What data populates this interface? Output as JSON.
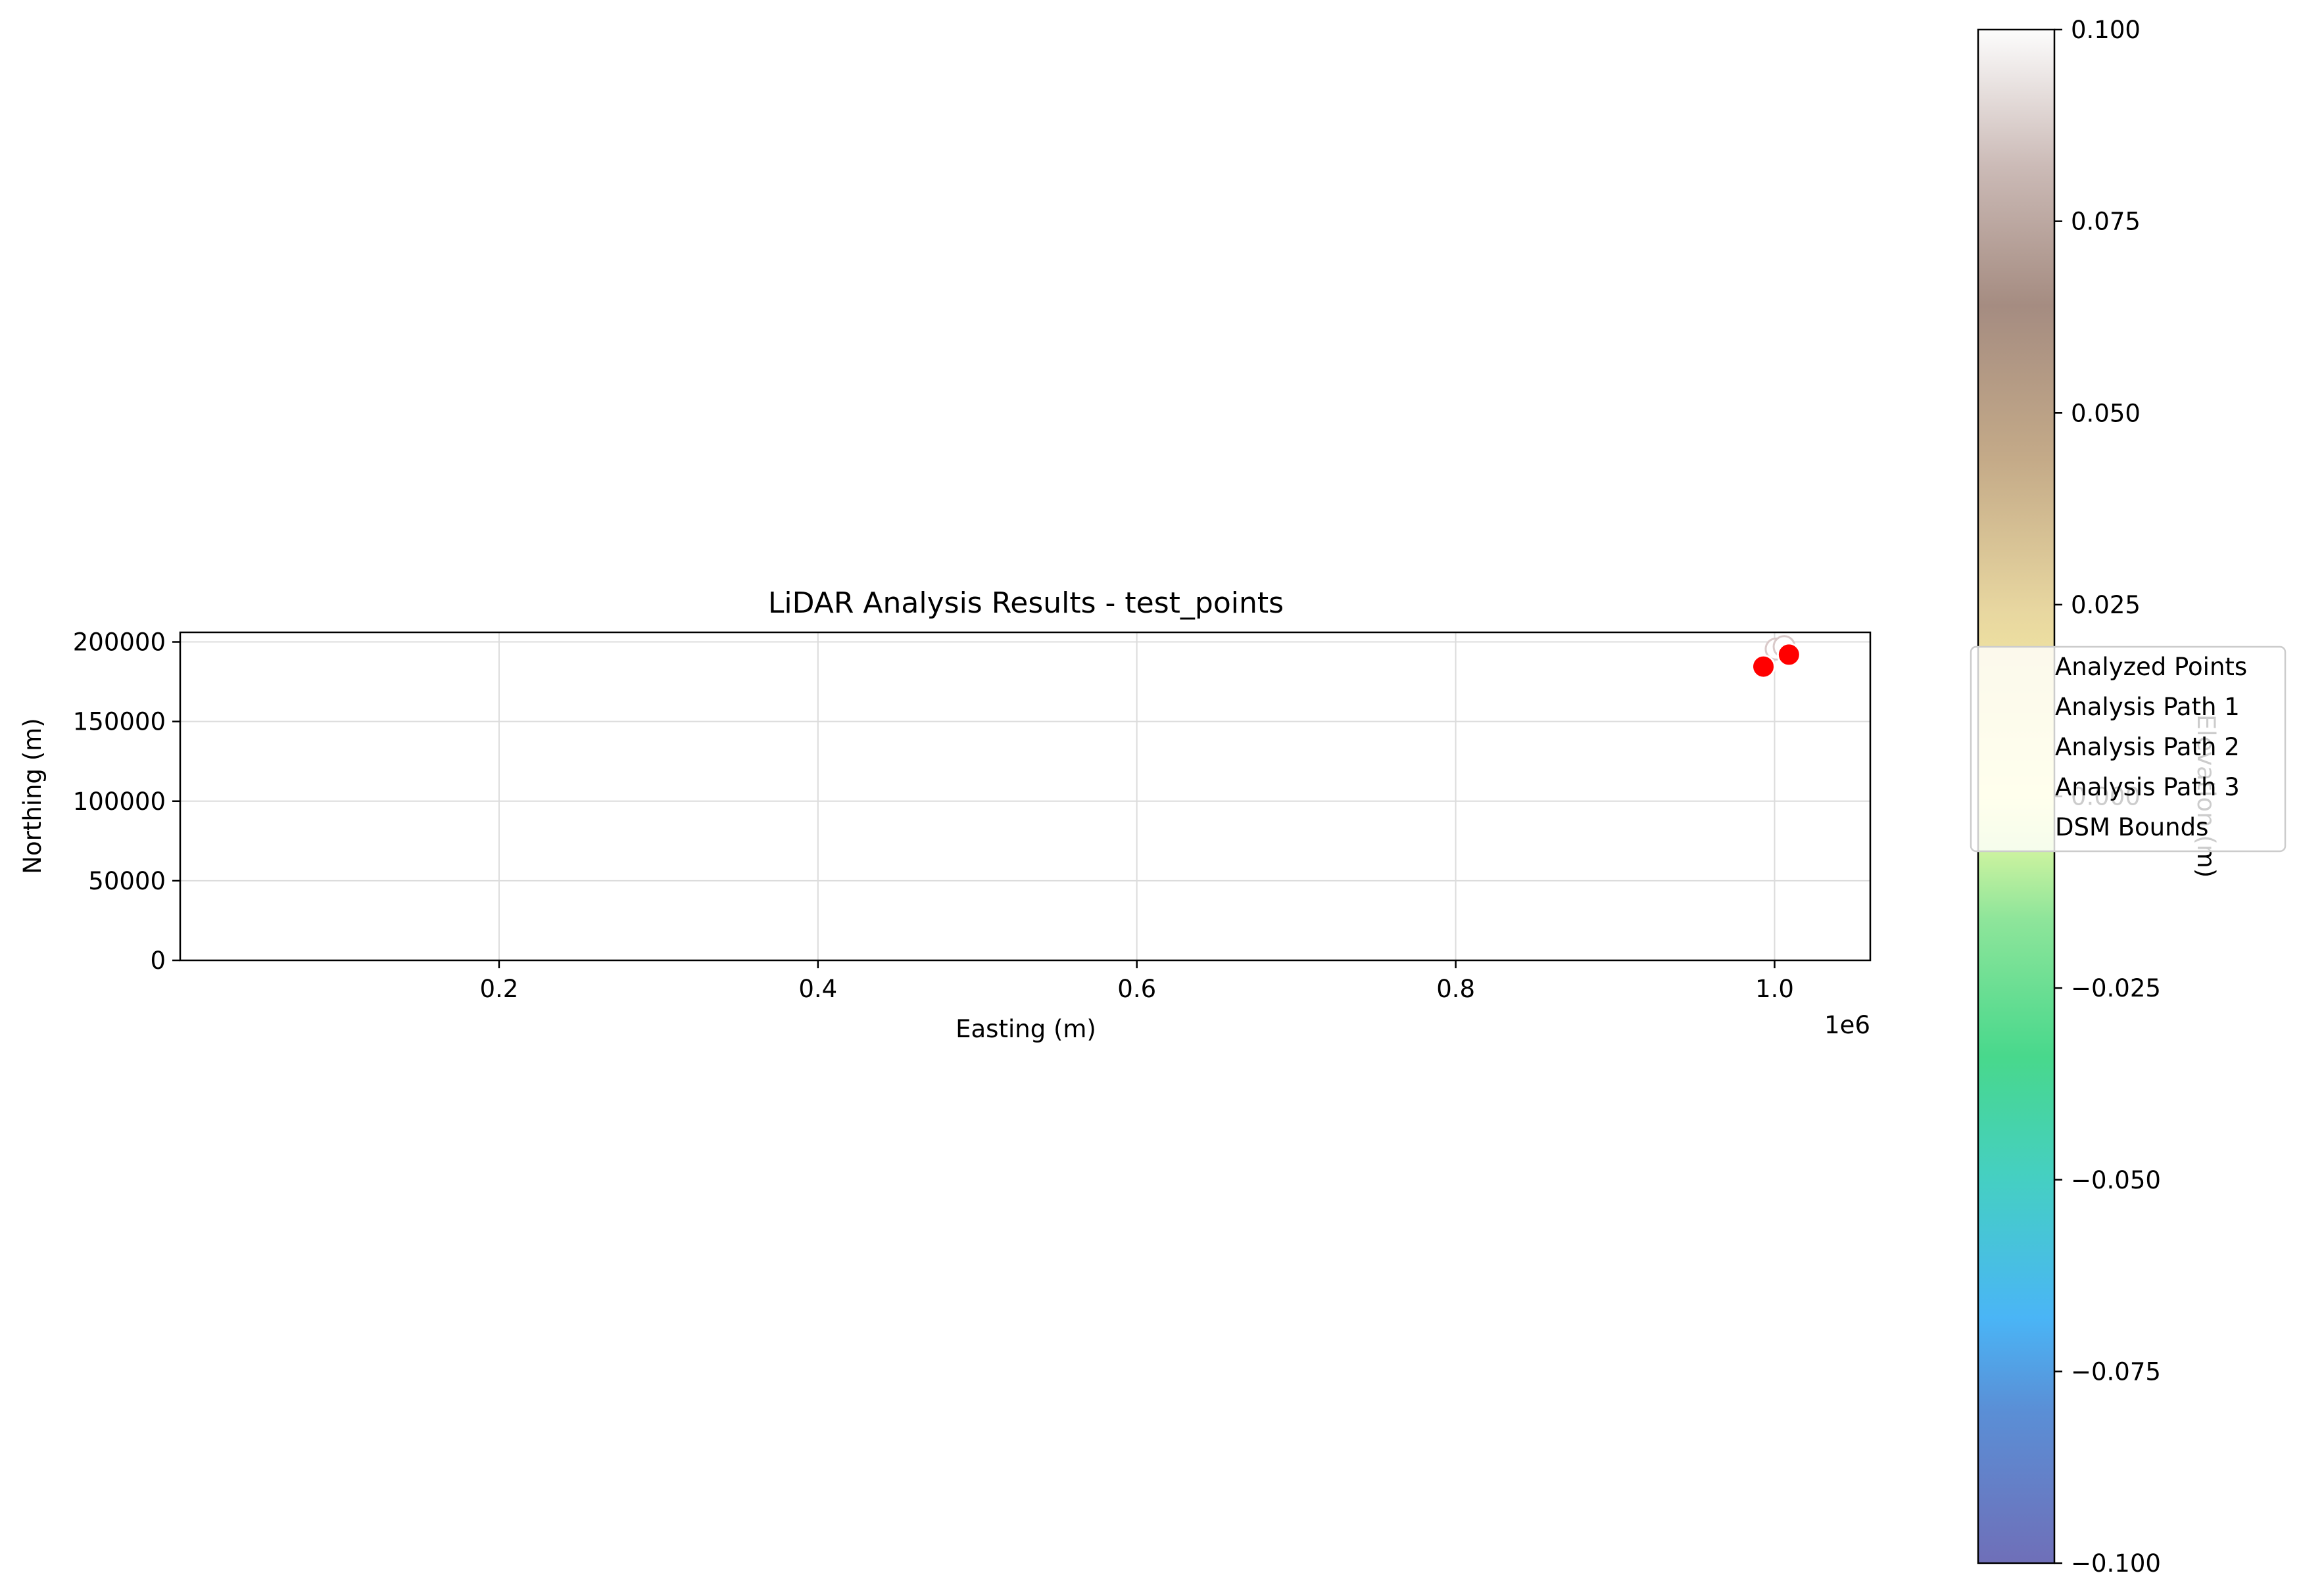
{
  "chart_data": {
    "type": "scatter",
    "title": "LiDAR Analysis Results - test_points",
    "xlabel": "Easting (m)",
    "ylabel": "Northing (m)",
    "x_offset_label": "1e6",
    "xlim": [
      0.0,
      1.06
    ],
    "ylim": [
      0,
      206000
    ],
    "x_ticks": [
      0.2,
      0.4,
      0.6,
      0.8,
      1.0
    ],
    "x_tick_labels": [
      "0.2",
      "0.4",
      "0.6",
      "0.8",
      "1.0"
    ],
    "y_ticks": [
      0,
      50000,
      100000,
      150000,
      200000
    ],
    "y_tick_labels": [
      "0",
      "50000",
      "100000",
      "150000",
      "200000"
    ],
    "grid": true,
    "legend_placement": "right of axes, overlapping colorbar",
    "legend": [
      "Analyzed Points",
      "Analysis Path 1",
      "Analysis Path 2",
      "Analysis Path 3",
      "DSM Bounds"
    ],
    "analyzed_points": {
      "color": "#ff0000",
      "edge_color": "#ffffff",
      "points": [
        {
          "x": 0.993,
          "y": 184500
        },
        {
          "x": 1.009,
          "y": 192000
        }
      ]
    },
    "faint_points": [
      {
        "x": 1.001,
        "y": 195500
      },
      {
        "x": 1.006,
        "y": 197000
      }
    ],
    "colorbar": {
      "label": "Elevation (m)",
      "min": -0.1,
      "max": 0.1,
      "colormap": "terrain",
      "ticks": [
        -0.1,
        -0.075,
        -0.05,
        -0.025,
        0.0,
        0.025,
        0.05,
        0.075,
        0.1
      ],
      "tick_labels": [
        "−0.100",
        "−0.075",
        "−0.050",
        "−0.025",
        "0.000",
        "0.025",
        "0.050",
        "0.075",
        "0.100"
      ]
    }
  }
}
